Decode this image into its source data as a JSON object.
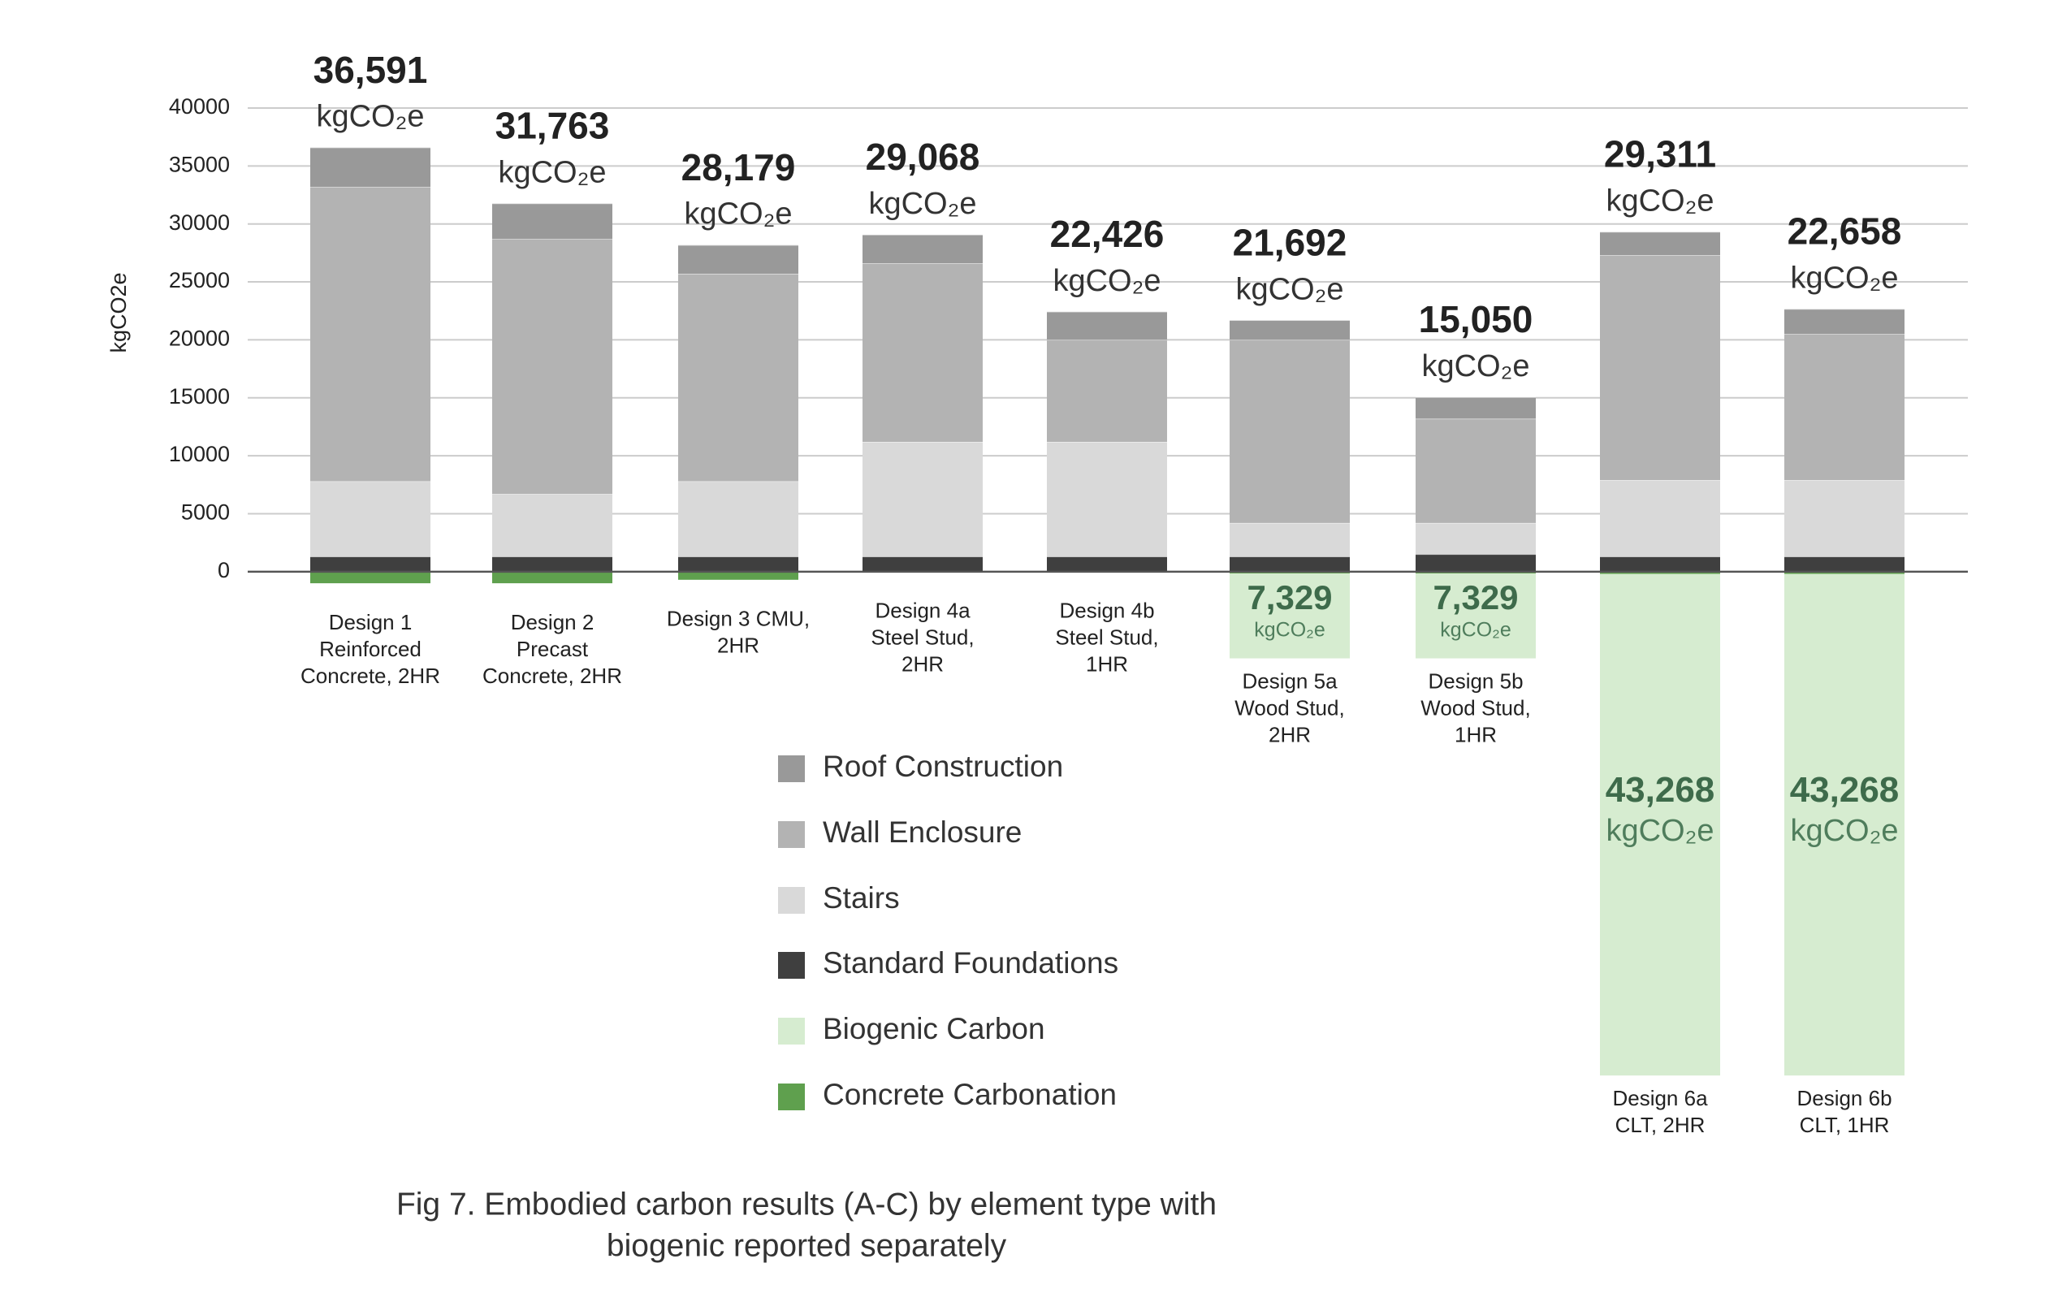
{
  "chart_data": {
    "type": "stacked_bar",
    "y_label": "kgCO2e",
    "unit": "kgCO₂e",
    "caption": [
      "Fig 7. Embodied carbon results (A-C) by element type with",
      "biogenic reported separately"
    ],
    "categories": [
      [
        "Design 1",
        "Reinforced",
        "Concrete, 2HR"
      ],
      [
        "Design 2",
        "Precast",
        "Concrete, 2HR"
      ],
      [
        "Design 3 CMU,",
        "2HR"
      ],
      [
        "Design 4a",
        "Steel Stud,",
        "2HR"
      ],
      [
        "Design 4b",
        "Steel Stud,",
        "1HR"
      ],
      [
        "Design 5a",
        "Wood Stud,",
        "2HR"
      ],
      [
        "Design 5b",
        "Wood Stud,",
        "1HR"
      ],
      [
        "Design 6a",
        "CLT, 2HR"
      ],
      [
        "Design 6b",
        "CLT, 1HR"
      ]
    ],
    "series": [
      {
        "name": "Roof Construction",
        "color": "#999999",
        "values": [
          3391,
          3063,
          2479,
          2468,
          2426,
          1692,
          1850,
          2011,
          2158
        ]
      },
      {
        "name": "Wall Enclosure",
        "color": "#b3b3b3",
        "values": [
          25400,
          22000,
          17900,
          15400,
          8800,
          15800,
          9000,
          19400,
          12600
        ]
      },
      {
        "name": "Stairs",
        "color": "#d9d9d9",
        "values": [
          6500,
          5400,
          6500,
          9900,
          9900,
          2900,
          2700,
          6600,
          6600
        ]
      },
      {
        "name": "Standard Foundations",
        "color": "#3f3f3f",
        "values": [
          1300,
          1300,
          1300,
          1300,
          1300,
          1300,
          1500,
          1300,
          1300
        ]
      },
      {
        "name": "Biogenic Carbon",
        "color": "#d6ecd0",
        "values": [
          0,
          0,
          0,
          0,
          0,
          -7329,
          -7329,
          -43268,
          -43268
        ],
        "value_labels": [
          null,
          null,
          null,
          null,
          null,
          "7,329",
          "7,329",
          "43,268",
          "43,268"
        ]
      },
      {
        "name": "Concrete Carbonation",
        "color": "#5fa04e",
        "values": [
          -1000,
          -1000,
          -700,
          0,
          0,
          -150,
          -150,
          -200,
          -200
        ]
      }
    ],
    "totals": [
      36591,
      31763,
      28179,
      29068,
      22426,
      21692,
      15050,
      29311,
      22658
    ],
    "total_labels": [
      "36,591",
      "31,763",
      "28,179",
      "29,068",
      "22,426",
      "21,692",
      "15,050",
      "29,311",
      "22,658"
    ],
    "ylim": [
      -45000,
      40000
    ],
    "yticks": [
      0,
      5000,
      10000,
      15000,
      20000,
      25000,
      30000,
      35000,
      40000
    ],
    "grid": true
  }
}
